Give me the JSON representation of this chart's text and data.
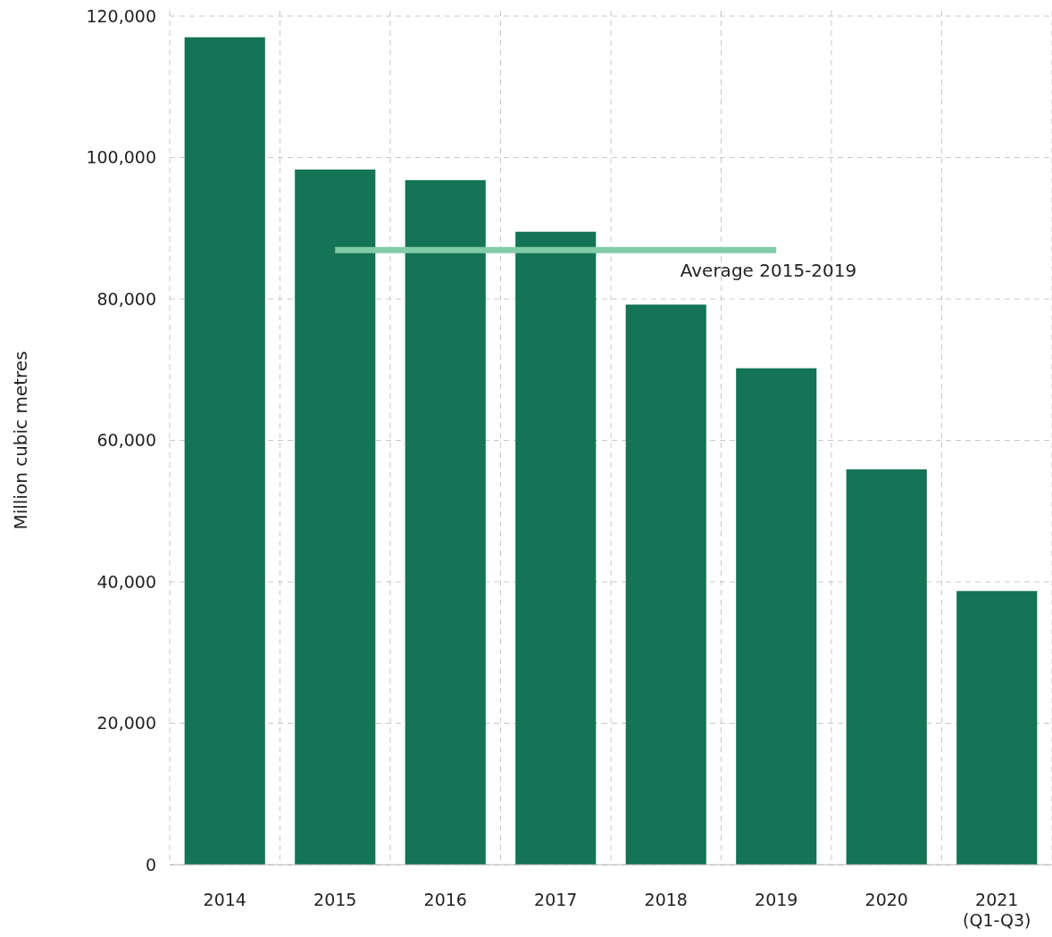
{
  "chart_data": {
    "type": "bar",
    "ylabel": "Million cubic metres",
    "categories": [
      "2014",
      "2015",
      "2016",
      "2017",
      "2018",
      "2019",
      "2020",
      "2021\n(Q1-Q3)"
    ],
    "series": [
      {
        "color": "#147455",
        "values": [
          117000,
          98300,
          96800,
          89500,
          79200,
          70200,
          55900,
          38700
        ]
      },
      {
        "type": "line",
        "name": "Average 2015-2019",
        "color": "#82cba8",
        "values": [
          null,
          86900,
          86900,
          86900,
          86900,
          86900,
          null,
          null
        ]
      }
    ],
    "ylim": [
      0,
      120000
    ],
    "yticks": [
      {
        "value": 0,
        "label": "0"
      },
      {
        "value": 20000,
        "label": "20,000"
      },
      {
        "value": 40000,
        "label": "40,000"
      },
      {
        "value": 60000,
        "label": "60,000"
      },
      {
        "value": 80000,
        "label": "80,000"
      },
      {
        "value": 100000,
        "label": "100,000"
      },
      {
        "value": 120000,
        "label": "120,000"
      }
    ],
    "grid": true
  }
}
